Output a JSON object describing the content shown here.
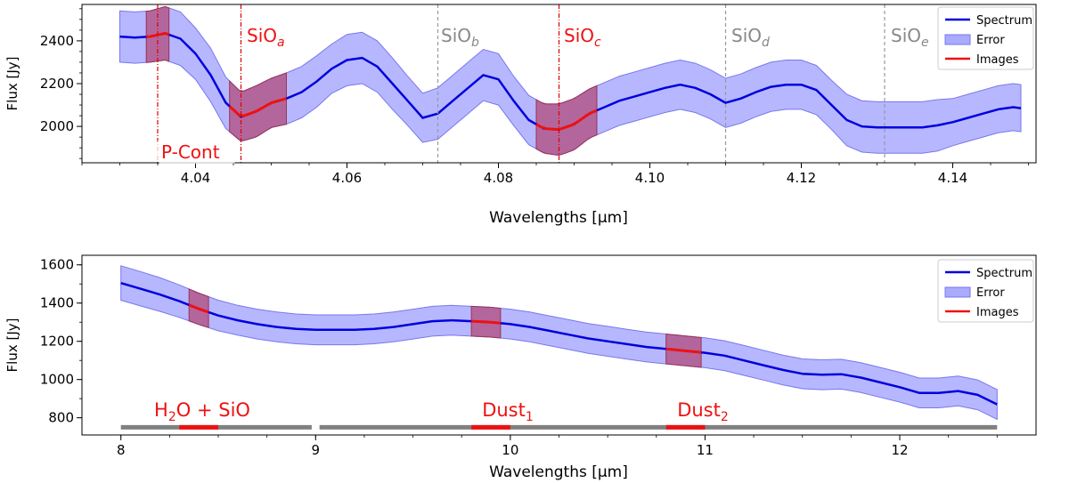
{
  "colors": {
    "spectrum": "#0000dd",
    "error_fill": "#aaaaff",
    "error_edge": "#7777ee",
    "images": "#ee1111",
    "image_band": "#b0305a",
    "marker_red": "#dd0000",
    "marker_gray": "#999999",
    "coverage_bar": "#808080"
  },
  "chart_data": [
    {
      "type": "line",
      "xlabel": "Wavelengths [µm]",
      "ylabel": "Flux [Jy]",
      "xlim": [
        4.025,
        4.151
      ],
      "ylim": [
        1830,
        2570
      ],
      "xticks": [
        4.04,
        4.06,
        4.08,
        4.1,
        4.12,
        4.14
      ],
      "xtick_labels": [
        "4.04",
        "4.06",
        "4.08",
        "4.10",
        "4.12",
        "4.14"
      ],
      "yticks": [
        2000,
        2200,
        2400
      ],
      "ytick_labels": [
        "2000",
        "2200",
        "2400"
      ],
      "legend": {
        "location": "top-right",
        "entries": [
          "Spectrum",
          "Error",
          "Images"
        ]
      },
      "series": [
        {
          "name": "Spectrum",
          "x": [
            4.03,
            4.032,
            4.034,
            4.036,
            4.038,
            4.04,
            4.042,
            4.044,
            4.046,
            4.048,
            4.05,
            4.052,
            4.054,
            4.056,
            4.058,
            4.06,
            4.062,
            4.064,
            4.066,
            4.068,
            4.07,
            4.072,
            4.074,
            4.076,
            4.078,
            4.08,
            4.082,
            4.084,
            4.086,
            4.088,
            4.09,
            4.092,
            4.094,
            4.096,
            4.098,
            4.1,
            4.102,
            4.104,
            4.106,
            4.108,
            4.11,
            4.112,
            4.114,
            4.116,
            4.118,
            4.12,
            4.122,
            4.124,
            4.126,
            4.128,
            4.13,
            4.132,
            4.134,
            4.136,
            4.138,
            4.14,
            4.142,
            4.144,
            4.146,
            4.148,
            4.149
          ],
          "y": [
            2420,
            2415,
            2420,
            2435,
            2410,
            2340,
            2240,
            2110,
            2045,
            2070,
            2110,
            2130,
            2160,
            2210,
            2270,
            2310,
            2320,
            2280,
            2200,
            2120,
            2040,
            2060,
            2120,
            2180,
            2240,
            2220,
            2120,
            2030,
            1990,
            1985,
            2010,
            2060,
            2090,
            2120,
            2140,
            2160,
            2180,
            2195,
            2180,
            2150,
            2110,
            2130,
            2160,
            2185,
            2195,
            2195,
            2170,
            2100,
            2030,
            2000,
            1995,
            1995,
            1995,
            1995,
            2005,
            2020,
            2040,
            2060,
            2080,
            2090,
            2085
          ]
        },
        {
          "name": "Error",
          "half_width": [
            120,
            120,
            120,
            125,
            125,
            120,
            125,
            120,
            115,
            120,
            115,
            120,
            120,
            120,
            115,
            120,
            120,
            120,
            120,
            115,
            115,
            120,
            120,
            120,
            120,
            120,
            115,
            115,
            115,
            120,
            120,
            115,
            115,
            115,
            115,
            115,
            115,
            115,
            115,
            115,
            115,
            115,
            115,
            115,
            115,
            115,
            115,
            115,
            120,
            120,
            120,
            120,
            120,
            120,
            120,
            110,
            110,
            110,
            110,
            110,
            110
          ]
        }
      ],
      "image_bands": [
        [
          4.0335,
          4.0365
        ],
        [
          4.0445,
          4.052
        ],
        [
          4.085,
          4.093
        ]
      ],
      "line_markers": [
        {
          "x": 4.035,
          "label": "",
          "color": "red"
        },
        {
          "x": 4.046,
          "label": "SiO",
          "subscript": "a",
          "color": "red"
        },
        {
          "x": 4.072,
          "label": "SiO",
          "subscript": "b",
          "color": "gray"
        },
        {
          "x": 4.088,
          "label": "SiO",
          "subscript": "c",
          "color": "red"
        },
        {
          "x": 4.11,
          "label": "SiO",
          "subscript": "d",
          "color": "gray"
        },
        {
          "x": 4.131,
          "label": "SiO",
          "subscript": "e",
          "color": "gray"
        }
      ],
      "annotation": "P-Cont"
    },
    {
      "type": "line",
      "xlabel": "Wavelengths [µm]",
      "ylabel": "Flux [Jy]",
      "xlim": [
        7.8,
        12.7
      ],
      "ylim": [
        710,
        1650
      ],
      "xticks": [
        8,
        9,
        10,
        11,
        12
      ],
      "xtick_labels": [
        "8",
        "9",
        "10",
        "11",
        "12"
      ],
      "yticks": [
        800,
        1000,
        1200,
        1400,
        1600
      ],
      "ytick_labels": [
        "800",
        "1000",
        "1200",
        "1400",
        "1600"
      ],
      "legend": {
        "location": "top-right",
        "entries": [
          "Spectrum",
          "Error",
          "Images"
        ]
      },
      "series": [
        {
          "name": "Spectrum",
          "x": [
            8.0,
            8.1,
            8.2,
            8.3,
            8.4,
            8.5,
            8.6,
            8.7,
            8.8,
            8.9,
            9.0,
            9.1,
            9.2,
            9.3,
            9.4,
            9.5,
            9.6,
            9.7,
            9.8,
            9.9,
            10.0,
            10.1,
            10.2,
            10.3,
            10.4,
            10.5,
            10.6,
            10.7,
            10.8,
            10.9,
            11.0,
            11.1,
            11.2,
            11.3,
            11.4,
            11.5,
            11.6,
            11.7,
            11.8,
            11.9,
            12.0,
            12.1,
            12.2,
            12.3,
            12.4,
            12.5
          ],
          "y": [
            1505,
            1475,
            1445,
            1410,
            1370,
            1335,
            1310,
            1290,
            1275,
            1265,
            1260,
            1260,
            1260,
            1265,
            1275,
            1290,
            1305,
            1310,
            1305,
            1300,
            1290,
            1275,
            1255,
            1235,
            1215,
            1200,
            1185,
            1170,
            1160,
            1150,
            1140,
            1125,
            1100,
            1075,
            1050,
            1030,
            1025,
            1028,
            1010,
            985,
            960,
            930,
            930,
            940,
            920,
            870
          ]
        },
        {
          "name": "Error",
          "half_width": [
            90,
            90,
            88,
            85,
            82,
            80,
            78,
            78,
            78,
            78,
            78,
            78,
            78,
            78,
            78,
            78,
            78,
            78,
            78,
            78,
            78,
            78,
            78,
            78,
            78,
            78,
            78,
            78,
            78,
            78,
            78,
            78,
            78,
            78,
            78,
            78,
            78,
            78,
            78,
            78,
            78,
            78,
            78,
            78,
            78,
            78
          ]
        }
      ],
      "image_bands": [
        [
          8.35,
          8.45
        ],
        [
          9.8,
          9.95
        ],
        [
          10.8,
          10.98
        ]
      ],
      "coverage_bars": [
        [
          8.0,
          8.98
        ],
        [
          9.02,
          12.5
        ]
      ],
      "red_bars": [
        [
          8.3,
          8.5
        ],
        [
          9.8,
          10.0
        ],
        [
          10.8,
          11.0
        ]
      ],
      "region_labels": [
        {
          "x": 8.55,
          "text": "H",
          "sub": "2",
          "rest": "O + SiO"
        },
        {
          "x": 9.9,
          "text": "Dust",
          "sub": "1",
          "rest": ""
        },
        {
          "x": 10.9,
          "text": "Dust",
          "sub": "2",
          "rest": ""
        }
      ]
    }
  ]
}
